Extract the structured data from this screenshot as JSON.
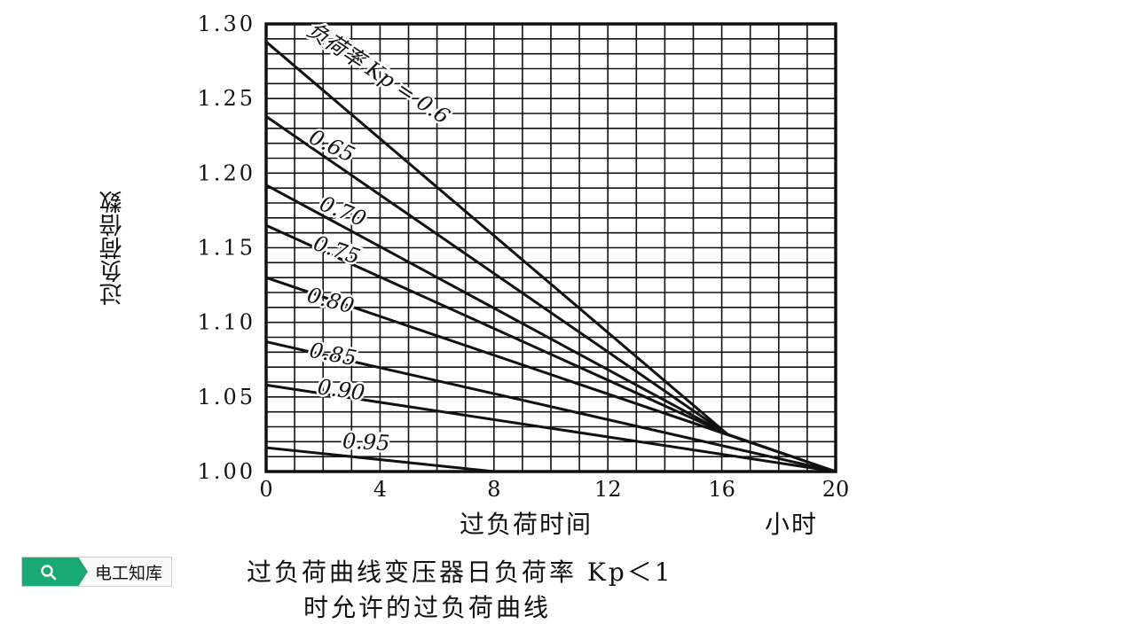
{
  "chart_data": {
    "type": "line",
    "ylabel": "过负荷倍数",
    "xlabel": "过负荷时间",
    "xunit": "小时",
    "xlim": [
      0,
      20
    ],
    "ylim": [
      1.0,
      1.3
    ],
    "xticks": [
      "0",
      "4",
      "8",
      "12",
      "16",
      "20"
    ],
    "yticks": [
      "1.00",
      "1.05",
      "1.10",
      "1.15",
      "1.20",
      "1.25",
      "1.30"
    ],
    "grid": true,
    "series": [
      {
        "name": "负荷率 Kp = 0.6",
        "x": [
          0,
          16.2
        ],
        "y": [
          1.288,
          1.025
        ]
      },
      {
        "name": "0.65",
        "x": [
          0,
          16.2
        ],
        "y": [
          1.238,
          1.025
        ]
      },
      {
        "name": "0.70",
        "x": [
          0,
          16.2
        ],
        "y": [
          1.192,
          1.025
        ]
      },
      {
        "name": "0.75",
        "x": [
          0,
          16.2
        ],
        "y": [
          1.165,
          1.025
        ]
      },
      {
        "name": "0.80",
        "x": [
          0,
          20
        ],
        "y": [
          1.13,
          1.0
        ]
      },
      {
        "name": "0.85",
        "x": [
          0,
          20
        ],
        "y": [
          1.087,
          1.0
        ]
      },
      {
        "name": "0.90",
        "x": [
          0,
          20
        ],
        "y": [
          1.058,
          1.0
        ]
      },
      {
        "name": "0.95",
        "x": [
          0,
          8
        ],
        "y": [
          1.016,
          1.0
        ]
      }
    ],
    "tail": {
      "x": [
        16.2,
        20
      ],
      "y": [
        1.025,
        1.0
      ]
    },
    "labels": [
      "负荷率 Kp = 0.6",
      "0.65",
      "0.70",
      "0.75",
      "0.80",
      "0.85",
      "0.90",
      "0.95"
    ]
  },
  "badge": {
    "text": "电工知库"
  },
  "caption": {
    "line1": "过负荷曲线变压器日负荷率 Kp＜1",
    "line2": "时允许的过负荷曲线"
  }
}
